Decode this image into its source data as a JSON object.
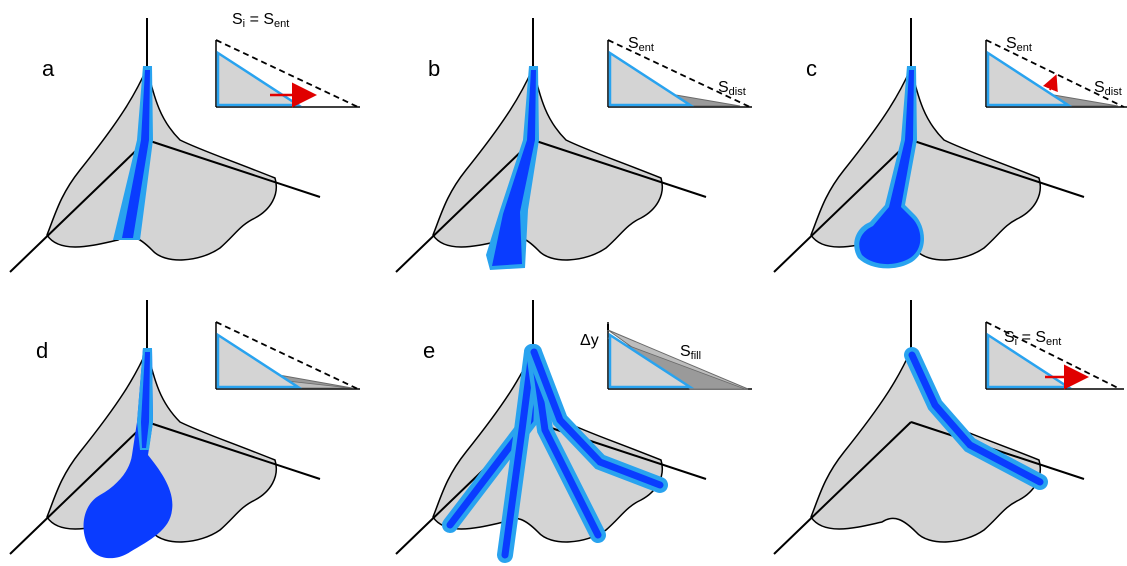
{
  "panels": [
    {
      "label": "a",
      "slope_text": {
        "s": "S",
        "sub": "i",
        "eq": " = ",
        "s2": "S",
        "sub2": "ent"
      }
    },
    {
      "label": "b",
      "sent": {
        "s": "S",
        "sub": "ent"
      },
      "sdist": {
        "s": "S",
        "sub": "dist"
      }
    },
    {
      "label": "c",
      "sent": {
        "s": "S",
        "sub": "ent"
      },
      "sdist": {
        "s": "S",
        "sub": "dist"
      }
    },
    {
      "label": "d"
    },
    {
      "label": "e",
      "dy": "Δy",
      "sfill": {
        "s": "S",
        "sub": "fill"
      }
    },
    {
      "label": "",
      "slope_text": {
        "s": "S",
        "sub": "i",
        "eq": " = ",
        "s2": "S",
        "sub2": "ent"
      }
    }
  ],
  "colors": {
    "fan_fill": "#d4d4d4",
    "channel_outer": "#29a3ef",
    "channel_inner": "#0a3cff",
    "arrow": "#e00000",
    "deposit": "#9a9a9a"
  }
}
